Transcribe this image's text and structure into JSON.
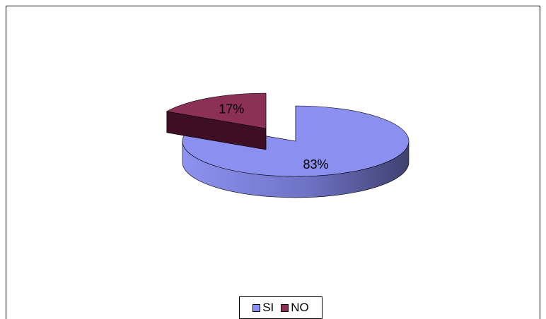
{
  "chart_data": {
    "type": "pie",
    "categories": [
      "SI",
      "NO"
    ],
    "values": [
      83,
      17
    ],
    "data_labels": [
      "83%",
      "17%"
    ],
    "exploded": [
      "NO"
    ],
    "three_d": true,
    "legend_placement": "bottom",
    "colors": [
      "#8B8FEF",
      "#8C3057"
    ]
  }
}
